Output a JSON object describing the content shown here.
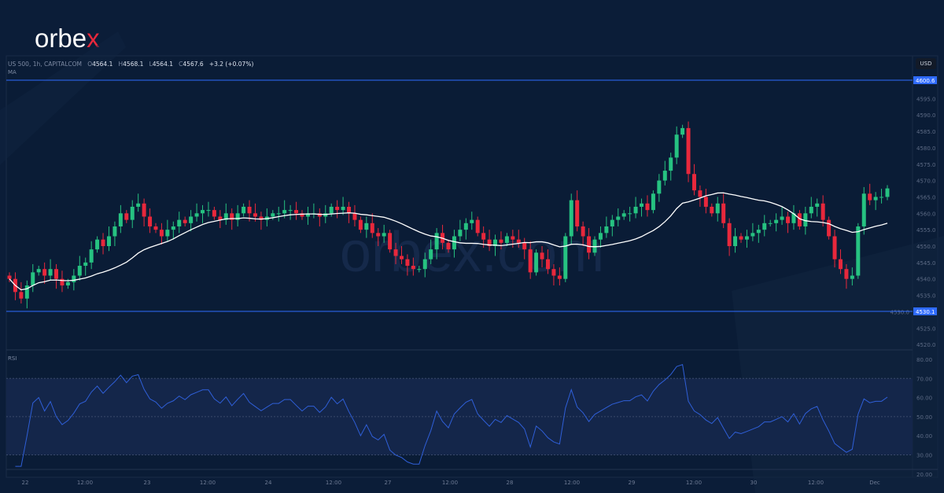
{
  "brand": {
    "logo_main": "orbe",
    "logo_accent": "x",
    "watermark": "orbex.com"
  },
  "header": {
    "symbol": "US 500, 1h, CAPITALCOM",
    "o_label": "O",
    "o": "4564.1",
    "h_label": "H",
    "h": "4568.1",
    "l_label": "L",
    "l": "4564.1",
    "c_label": "C",
    "c": "4567.6",
    "change": "+3.2 (+0.07%)",
    "indicator": "MA"
  },
  "currency": "USD",
  "colors": {
    "up": "#26c281",
    "down": "#e8283c",
    "ma": "#ffffff",
    "rsi": "#2f5fd8",
    "level_line": "#2f6bff",
    "background": "#0b1d38"
  },
  "chart_data": [
    {
      "type": "candlestick",
      "title": "",
      "ylim": [
        4518,
        4603
      ],
      "yticks": [
        4520,
        4525,
        4530,
        4535,
        4540,
        4545,
        4550,
        4555,
        4560,
        4565,
        4570,
        4575,
        4580,
        4585,
        4590,
        4595
      ],
      "horizontal_levels": [
        "4600.6",
        "4530.1"
      ],
      "xticks": [
        "22",
        "12:00",
        "23",
        "12:00",
        "24",
        "12:00",
        "27",
        "12:00",
        "28",
        "12:00",
        "29",
        "12:00",
        "30",
        "12:00",
        "Dec"
      ],
      "closes": [
        4540,
        4536,
        4534,
        4538,
        4542,
        4543,
        4541,
        4543,
        4540,
        4538,
        4539,
        4541,
        4544,
        4545,
        4549,
        4552,
        4550,
        4553,
        4556,
        4560,
        4558,
        4562,
        4563,
        4559,
        4556,
        4555,
        4553,
        4555,
        4556,
        4558,
        4557,
        4559,
        4560,
        4561,
        4561,
        4559,
        4558,
        4560,
        4558,
        4560,
        4562,
        4560,
        4559,
        4558,
        4559,
        4560,
        4560,
        4561,
        4561,
        4560,
        4559,
        4560,
        4560,
        4559,
        4560,
        4562,
        4561,
        4562,
        4560,
        4558,
        4555,
        4557,
        4554,
        4553,
        4554,
        4549,
        4547,
        4546,
        4544,
        4543,
        4543,
        4546,
        4549,
        4554,
        4551,
        4549,
        4553,
        4555,
        4557,
        4558,
        4554,
        4552,
        4550,
        4552,
        4551,
        4553,
        4552,
        4551,
        4549,
        4542,
        4548,
        4546,
        4543,
        4541,
        4540,
        4553,
        4564,
        4556,
        4553,
        4548,
        4552,
        4554,
        4556,
        4558,
        4559,
        4560,
        4560,
        4562,
        4563,
        4561,
        4566,
        4570,
        4573,
        4577,
        4584,
        4586,
        4572,
        4567,
        4565,
        4562,
        4560,
        4563,
        4557,
        4550,
        4553,
        4552,
        4553,
        4554,
        4555,
        4557,
        4557,
        4558,
        4559,
        4557,
        4560,
        4556,
        4560,
        4562,
        4563,
        4558,
        4553,
        4546,
        4543,
        4540,
        4541,
        4556,
        4566,
        4564,
        4565,
        4565,
        4567.6
      ],
      "overlay": "MA"
    },
    {
      "type": "line",
      "title": "RSI",
      "ylim": [
        20,
        80
      ],
      "yticks": [
        "80.00",
        "70.00",
        "60.00",
        "50.00",
        "40.00",
        "30.00",
        "20.00"
      ],
      "bands": [
        30,
        70
      ]
    }
  ]
}
